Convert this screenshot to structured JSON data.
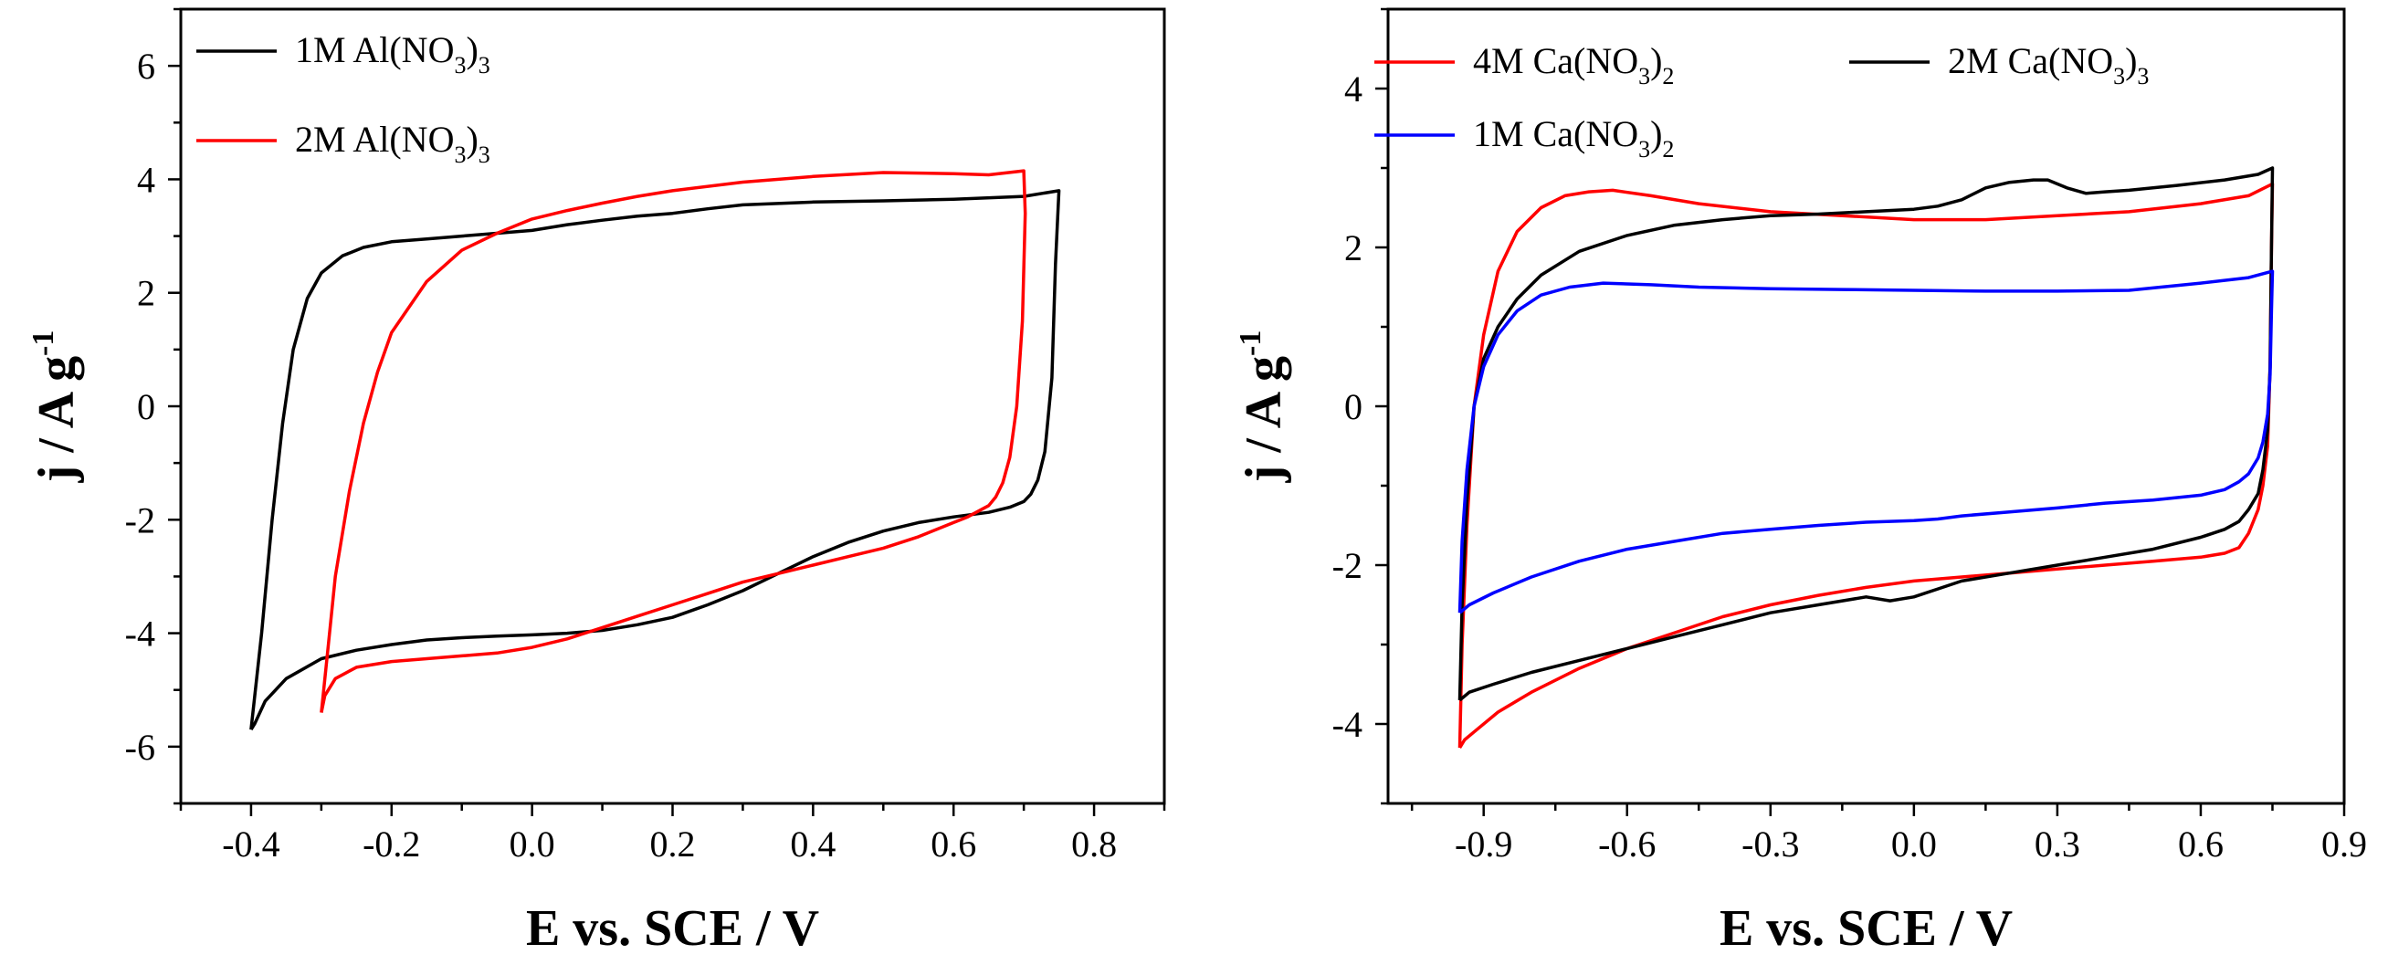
{
  "chart_data": [
    {
      "type": "line",
      "xlabel": "E vs. SCE / V",
      "ylabel_main": "j / A g",
      "ylabel_sup": "-1",
      "xlim": [
        -0.5,
        0.9
      ],
      "ylim": [
        -7,
        7
      ],
      "xticks": [
        -0.4,
        -0.2,
        0.0,
        0.2,
        0.4,
        0.6,
        0.8
      ],
      "xtick_labels": [
        "-0.4",
        "-0.2",
        "0.0",
        "0.2",
        "0.4",
        "0.6",
        "0.8"
      ],
      "yticks": [
        -6,
        -4,
        -2,
        0,
        2,
        4,
        6
      ],
      "ytick_labels": [
        "-6",
        "-4",
        "-2",
        "0",
        "2",
        "4",
        "6"
      ],
      "series": [
        {
          "name": "1M Al(NO3)3",
          "legend_parts": [
            "1M Al(NO",
            "3",
            ")",
            "3"
          ],
          "color": "#000000",
          "x": [
            -0.4,
            -0.385,
            -0.37,
            -0.355,
            -0.34,
            -0.32,
            -0.3,
            -0.27,
            -0.24,
            -0.2,
            -0.15,
            -0.1,
            -0.05,
            0.0,
            0.05,
            0.1,
            0.15,
            0.2,
            0.25,
            0.3,
            0.4,
            0.5,
            0.6,
            0.7,
            0.75,
            0.745,
            0.74,
            0.73,
            0.72,
            0.71,
            0.7,
            0.68,
            0.65,
            0.6,
            0.55,
            0.5,
            0.45,
            0.4,
            0.35,
            0.3,
            0.25,
            0.2,
            0.15,
            0.1,
            0.05,
            0.0,
            -0.05,
            -0.1,
            -0.15,
            -0.2,
            -0.25,
            -0.3,
            -0.35,
            -0.38,
            -0.395,
            -0.4
          ],
          "y": [
            -5.7,
            -4.0,
            -2.0,
            -0.3,
            1.0,
            1.9,
            2.35,
            2.65,
            2.8,
            2.9,
            2.95,
            3.0,
            3.05,
            3.1,
            3.2,
            3.28,
            3.35,
            3.4,
            3.48,
            3.55,
            3.6,
            3.62,
            3.65,
            3.7,
            3.8,
            2.5,
            0.5,
            -0.8,
            -1.3,
            -1.55,
            -1.68,
            -1.78,
            -1.87,
            -1.95,
            -2.05,
            -2.2,
            -2.4,
            -2.65,
            -2.95,
            -3.25,
            -3.5,
            -3.72,
            -3.85,
            -3.95,
            -4.0,
            -4.03,
            -4.05,
            -4.08,
            -4.12,
            -4.2,
            -4.3,
            -4.45,
            -4.8,
            -5.2,
            -5.6,
            -5.7
          ]
        },
        {
          "name": "2M Al(NO3)3",
          "legend_parts": [
            "2M Al(NO",
            "3",
            ")",
            "3"
          ],
          "color": "#ff0000",
          "x": [
            -0.3,
            -0.29,
            -0.28,
            -0.26,
            -0.24,
            -0.22,
            -0.2,
            -0.15,
            -0.1,
            -0.05,
            0.0,
            0.05,
            0.1,
            0.15,
            0.2,
            0.3,
            0.4,
            0.5,
            0.6,
            0.65,
            0.7,
            0.702,
            0.698,
            0.69,
            0.68,
            0.67,
            0.66,
            0.65,
            0.62,
            0.6,
            0.55,
            0.5,
            0.45,
            0.4,
            0.35,
            0.3,
            0.25,
            0.2,
            0.15,
            0.1,
            0.05,
            0.0,
            -0.05,
            -0.1,
            -0.15,
            -0.2,
            -0.25,
            -0.28,
            -0.295,
            -0.3
          ],
          "y": [
            -5.4,
            -4.2,
            -3.0,
            -1.5,
            -0.3,
            0.6,
            1.3,
            2.2,
            2.75,
            3.05,
            3.3,
            3.45,
            3.58,
            3.7,
            3.8,
            3.95,
            4.05,
            4.12,
            4.1,
            4.08,
            4.15,
            3.4,
            1.5,
            0.0,
            -0.9,
            -1.35,
            -1.6,
            -1.75,
            -1.95,
            -2.05,
            -2.3,
            -2.5,
            -2.65,
            -2.8,
            -2.95,
            -3.1,
            -3.3,
            -3.5,
            -3.7,
            -3.9,
            -4.1,
            -4.25,
            -4.35,
            -4.4,
            -4.45,
            -4.5,
            -4.6,
            -4.8,
            -5.1,
            -5.4
          ]
        }
      ]
    },
    {
      "type": "line",
      "xlabel": "E vs. SCE / V",
      "ylabel_main": "j / A g",
      "ylabel_sup": "-1",
      "xlim": [
        -1.1,
        0.9
      ],
      "ylim": [
        -5,
        5
      ],
      "xticks": [
        -0.9,
        -0.6,
        -0.3,
        0.0,
        0.3,
        0.6,
        0.9
      ],
      "xtick_labels": [
        "-0.9",
        "-0.6",
        "-0.3",
        "0.0",
        "0.3",
        "0.6",
        "0.9"
      ],
      "yticks": [
        -4,
        -2,
        0,
        2,
        4
      ],
      "ytick_labels": [
        "-4",
        "-2",
        "0",
        "2",
        "4"
      ],
      "series": [
        {
          "name": "4M Ca(NO3)2",
          "legend_parts": [
            "4M Ca(NO",
            "3",
            ")",
            "2"
          ],
          "color": "#ff0000",
          "x": [
            -0.95,
            -0.945,
            -0.935,
            -0.92,
            -0.9,
            -0.87,
            -0.83,
            -0.78,
            -0.73,
            -0.68,
            -0.63,
            -0.55,
            -0.45,
            -0.3,
            -0.15,
            0.0,
            0.15,
            0.3,
            0.45,
            0.6,
            0.7,
            0.75,
            0.748,
            0.745,
            0.74,
            0.73,
            0.72,
            0.7,
            0.68,
            0.65,
            0.6,
            0.5,
            0.4,
            0.3,
            0.2,
            0.1,
            0.0,
            -0.1,
            -0.2,
            -0.3,
            -0.4,
            -0.5,
            -0.6,
            -0.7,
            -0.8,
            -0.87,
            -0.92,
            -0.94,
            -0.95
          ],
          "y": [
            -4.3,
            -3.0,
            -1.5,
            0.0,
            0.9,
            1.7,
            2.2,
            2.5,
            2.65,
            2.7,
            2.72,
            2.65,
            2.55,
            2.45,
            2.4,
            2.35,
            2.35,
            2.4,
            2.45,
            2.55,
            2.65,
            2.8,
            2.0,
            0.5,
            -0.5,
            -1.0,
            -1.3,
            -1.6,
            -1.78,
            -1.85,
            -1.9,
            -1.95,
            -2.0,
            -2.05,
            -2.1,
            -2.15,
            -2.2,
            -2.28,
            -2.38,
            -2.5,
            -2.65,
            -2.85,
            -3.05,
            -3.3,
            -3.6,
            -3.85,
            -4.1,
            -4.2,
            -4.3
          ]
        },
        {
          "name": "2M Ca(NO3)3",
          "legend_parts": [
            "2M Ca(NO",
            "3",
            ")",
            "3"
          ],
          "color": "#000000",
          "x": [
            -0.95,
            -0.945,
            -0.935,
            -0.92,
            -0.9,
            -0.87,
            -0.83,
            -0.78,
            -0.7,
            -0.6,
            -0.5,
            -0.4,
            -0.3,
            -0.2,
            -0.1,
            0.0,
            0.05,
            0.1,
            0.15,
            0.2,
            0.25,
            0.28,
            0.32,
            0.36,
            0.4,
            0.45,
            0.55,
            0.65,
            0.72,
            0.75,
            0.748,
            0.745,
            0.74,
            0.73,
            0.72,
            0.7,
            0.68,
            0.65,
            0.6,
            0.5,
            0.4,
            0.3,
            0.2,
            0.1,
            0.05,
            0.0,
            -0.05,
            -0.1,
            -0.2,
            -0.3,
            -0.4,
            -0.5,
            -0.6,
            -0.7,
            -0.8,
            -0.88,
            -0.93,
            -0.95
          ],
          "y": [
            -3.7,
            -2.5,
            -1.2,
            0.0,
            0.6,
            1.0,
            1.35,
            1.65,
            1.95,
            2.15,
            2.28,
            2.35,
            2.4,
            2.42,
            2.45,
            2.48,
            2.52,
            2.6,
            2.75,
            2.82,
            2.85,
            2.85,
            2.75,
            2.68,
            2.7,
            2.72,
            2.78,
            2.85,
            2.92,
            3.0,
            2.0,
            0.5,
            -0.3,
            -0.8,
            -1.1,
            -1.3,
            -1.45,
            -1.55,
            -1.65,
            -1.8,
            -1.9,
            -2.0,
            -2.1,
            -2.2,
            -2.3,
            -2.4,
            -2.45,
            -2.4,
            -2.5,
            -2.6,
            -2.75,
            -2.9,
            -3.05,
            -3.2,
            -3.35,
            -3.5,
            -3.6,
            -3.7
          ]
        },
        {
          "name": "1M Ca(NO3)2",
          "legend_parts": [
            "1M Ca(NO",
            "3",
            ")",
            "2"
          ],
          "color": "#0000ff",
          "x": [
            -0.95,
            -0.945,
            -0.935,
            -0.92,
            -0.9,
            -0.87,
            -0.83,
            -0.78,
            -0.72,
            -0.65,
            -0.55,
            -0.45,
            -0.3,
            -0.15,
            0.0,
            0.15,
            0.3,
            0.45,
            0.6,
            0.7,
            0.75,
            0.748,
            0.745,
            0.74,
            0.73,
            0.72,
            0.7,
            0.68,
            0.65,
            0.6,
            0.5,
            0.4,
            0.3,
            0.2,
            0.1,
            0.05,
            0.0,
            -0.1,
            -0.2,
            -0.3,
            -0.4,
            -0.5,
            -0.6,
            -0.7,
            -0.8,
            -0.88,
            -0.93,
            -0.95
          ],
          "y": [
            -2.6,
            -1.7,
            -0.8,
            0.0,
            0.5,
            0.9,
            1.2,
            1.4,
            1.5,
            1.55,
            1.53,
            1.5,
            1.48,
            1.47,
            1.46,
            1.45,
            1.45,
            1.46,
            1.55,
            1.62,
            1.7,
            1.2,
            0.4,
            -0.1,
            -0.45,
            -0.65,
            -0.85,
            -0.95,
            -1.05,
            -1.12,
            -1.18,
            -1.22,
            -1.28,
            -1.33,
            -1.38,
            -1.42,
            -1.44,
            -1.46,
            -1.5,
            -1.55,
            -1.6,
            -1.7,
            -1.8,
            -1.95,
            -2.15,
            -2.35,
            -2.5,
            -2.6
          ]
        }
      ]
    }
  ]
}
